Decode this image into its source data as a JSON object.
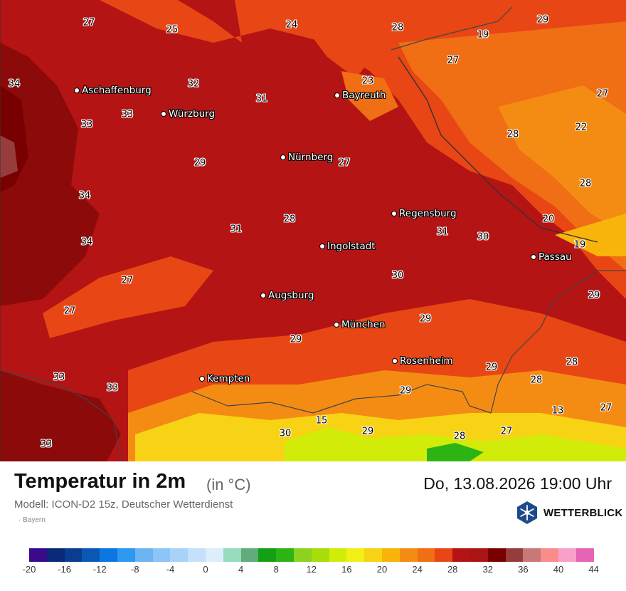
{
  "header": {
    "title": "Temperatur in 2m",
    "unit": "(in °C)",
    "datetime": "Do, 13.08.2026 19:00 Uhr",
    "model": "Modell: ICON-D2 15z, Deutscher Wetterdienst",
    "region": "· Bayern"
  },
  "logo": {
    "text": "WETTERBLICK",
    "icon": "snowflake-hexagon-icon"
  },
  "cities": [
    {
      "name": "Aschaffenburg"
    },
    {
      "name": "Würzburg"
    },
    {
      "name": "Bayreuth"
    },
    {
      "name": "Nürnberg"
    },
    {
      "name": "Regensburg"
    },
    {
      "name": "Ingolstadt"
    },
    {
      "name": "Passau"
    },
    {
      "name": "Augsburg"
    },
    {
      "name": "München"
    },
    {
      "name": "Rosenheim"
    },
    {
      "name": "Kempten"
    }
  ],
  "temps": [
    "27",
    "25",
    "24",
    "28",
    "19",
    "29",
    "34",
    "32",
    "31",
    "23",
    "27",
    "33",
    "33",
    "28",
    "22",
    "29",
    "27",
    "34",
    "28",
    "20",
    "28",
    "31",
    "31",
    "30",
    "34",
    "19",
    "30",
    "27",
    "29",
    "27",
    "29",
    "29",
    "28",
    "33",
    "33",
    "28",
    "29",
    "13",
    "27",
    "15",
    "33",
    "30",
    "29",
    "28",
    "27"
  ],
  "colorscale": {
    "colors": [
      "#3b0a8c",
      "#0a2a78",
      "#0b3c8f",
      "#0a58b4",
      "#0a78e0",
      "#2c98f0",
      "#6ab4f4",
      "#8cc4f6",
      "#a8d2f8",
      "#c4e0fa",
      "#dceefc",
      "#96dcbc",
      "#60ac7c",
      "#14a014",
      "#2cb414",
      "#8cd21e",
      "#a8dc0a",
      "#d2ec0a",
      "#f0f014",
      "#f8d214",
      "#f8b40a",
      "#f48c14",
      "#f06e14",
      "#e84614",
      "#b41414",
      "#aa1414",
      "#780000",
      "#963c3c",
      "#c87878",
      "#fa8c8c",
      "#f8a0c8",
      "#e664b4"
    ],
    "ticks": [
      "-20",
      "-16",
      "-12",
      "-8",
      "-4",
      "0",
      "4",
      "8",
      "12",
      "16",
      "20",
      "24",
      "28",
      "32",
      "36",
      "40",
      "44"
    ]
  }
}
